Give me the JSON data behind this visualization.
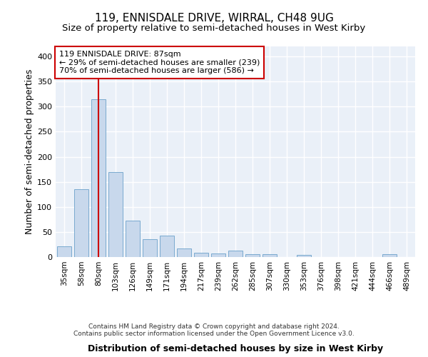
{
  "title": "119, ENNISDALE DRIVE, WIRRAL, CH48 9UG",
  "subtitle": "Size of property relative to semi-detached houses in West Kirby",
  "xlabel": "Distribution of semi-detached houses by size in West Kirby",
  "ylabel": "Number of semi-detached properties",
  "vline_color": "#cc0000",
  "annotation_text": "119 ENNISDALE DRIVE: 87sqm\n← 29% of semi-detached houses are smaller (239)\n70% of semi-detached houses are larger (586) →",
  "footer": "Contains HM Land Registry data © Crown copyright and database right 2024.\nContains public sector information licensed under the Open Government Licence v3.0.",
  "categories": [
    "35sqm",
    "58sqm",
    "80sqm",
    "103sqm",
    "126sqm",
    "149sqm",
    "171sqm",
    "194sqm",
    "217sqm",
    "239sqm",
    "262sqm",
    "285sqm",
    "307sqm",
    "330sqm",
    "353sqm",
    "376sqm",
    "398sqm",
    "421sqm",
    "444sqm",
    "466sqm",
    "489sqm"
  ],
  "values": [
    22,
    135,
    315,
    170,
    72,
    36,
    43,
    17,
    9,
    7,
    13,
    6,
    5,
    0,
    4,
    0,
    0,
    0,
    0,
    5,
    0
  ],
  "vline_bin": 2,
  "ylim": [
    0,
    420
  ],
  "yticks": [
    0,
    50,
    100,
    150,
    200,
    250,
    300,
    350,
    400
  ],
  "bar_color": "#c8d8ec",
  "bar_edge_color": "#7aaacf",
  "background_color": "#eaf0f8",
  "grid_color": "#ffffff"
}
